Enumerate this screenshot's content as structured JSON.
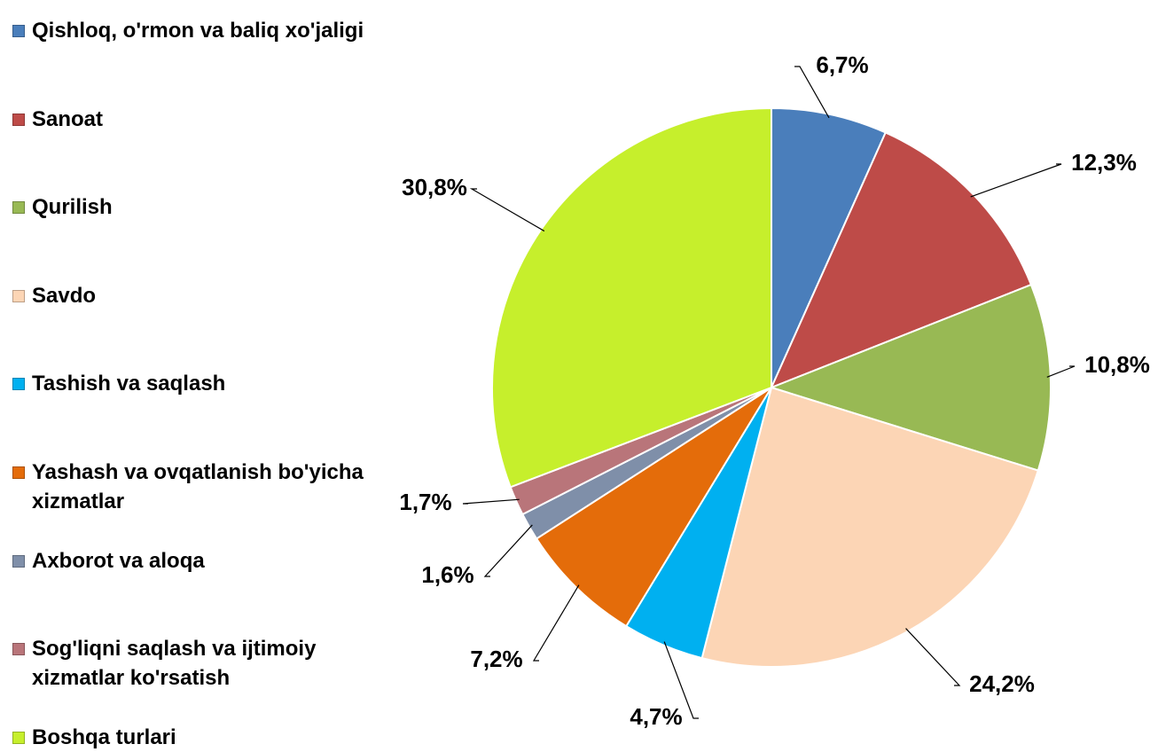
{
  "chart_data": {
    "type": "pie",
    "categories": [
      "Qishloq, o'rmon va baliq xo'jaligi",
      "Sanoat",
      "Qurilish",
      "Savdo",
      "Tashish va saqlash",
      "Yashash va ovqatlanish bo'yicha xizmatlar",
      "Axborot va aloqa",
      "Sog'liqni saqlash va ijtimoiy xizmatlar ko'rsatish",
      "Boshqa turlari"
    ],
    "values": [
      6.7,
      12.3,
      10.8,
      24.2,
      4.7,
      7.2,
      1.6,
      1.7,
      30.8
    ],
    "value_labels": [
      "6,7%",
      "12,3%",
      "10,8%",
      "24,2%",
      "4,7%",
      "7,2%",
      "1,6%",
      "1,7%",
      "30,8%"
    ],
    "colors": [
      "#4a7ebb",
      "#be4b48",
      "#98b954",
      "#fcd5b5",
      "#00b0f0",
      "#e46c0a",
      "#7f8fa9",
      "#b9757a",
      "#c6ef2c"
    ],
    "legend": "left"
  }
}
